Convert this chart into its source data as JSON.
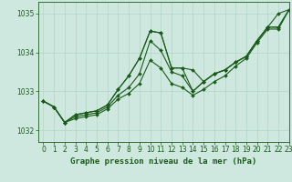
{
  "title": "Graphe pression niveau de la mer (hPa)",
  "bg_color": "#cfe8df",
  "grid_color": "#b0d4c4",
  "line_color": "#1a5c1a",
  "xlim": [
    -0.5,
    23
  ],
  "ylim": [
    1031.7,
    1035.3
  ],
  "yticks": [
    1032,
    1033,
    1034,
    1035
  ],
  "xticks": [
    0,
    1,
    2,
    3,
    4,
    5,
    6,
    7,
    8,
    9,
    10,
    11,
    12,
    13,
    14,
    15,
    16,
    17,
    18,
    19,
    20,
    21,
    22,
    23
  ],
  "series": [
    [
      1032.75,
      1032.6,
      1032.2,
      1032.4,
      1032.45,
      1032.5,
      1032.65,
      1033.05,
      1033.4,
      1033.85,
      1034.55,
      1034.5,
      1033.6,
      1033.6,
      1033.55,
      1033.25,
      1033.45,
      1033.55,
      1033.75,
      1033.9,
      1034.3,
      1034.65,
      1035.0,
      1035.1
    ],
    [
      1032.75,
      1032.6,
      1032.2,
      1032.4,
      1032.45,
      1032.5,
      1032.65,
      1033.05,
      1033.4,
      1033.85,
      1034.55,
      1034.5,
      1033.6,
      1033.6,
      1033.0,
      1033.25,
      1033.45,
      1033.55,
      1033.75,
      1033.9,
      1034.3,
      1034.65,
      1034.65,
      1035.1
    ],
    [
      1032.75,
      1032.6,
      1032.2,
      1032.35,
      1032.4,
      1032.45,
      1032.6,
      1032.9,
      1033.1,
      1033.45,
      1034.3,
      1034.05,
      1033.5,
      1033.4,
      1033.0,
      1033.25,
      1033.45,
      1033.55,
      1033.75,
      1033.9,
      1034.3,
      1034.65,
      1034.65,
      1035.1
    ],
    [
      1032.75,
      1032.6,
      1032.2,
      1032.3,
      1032.35,
      1032.4,
      1032.55,
      1032.8,
      1032.95,
      1033.2,
      1033.8,
      1033.6,
      1033.2,
      1033.1,
      1032.9,
      1033.05,
      1033.25,
      1033.4,
      1033.65,
      1033.85,
      1034.25,
      1034.6,
      1034.6,
      1035.1
    ]
  ],
  "marker": "D",
  "markersize": 2.0,
  "linewidth": 0.8,
  "tick_fontsize": 5.5,
  "label_fontsize": 6.5,
  "tick_color": "#1a5c1a",
  "label_color": "#1a5c1a"
}
